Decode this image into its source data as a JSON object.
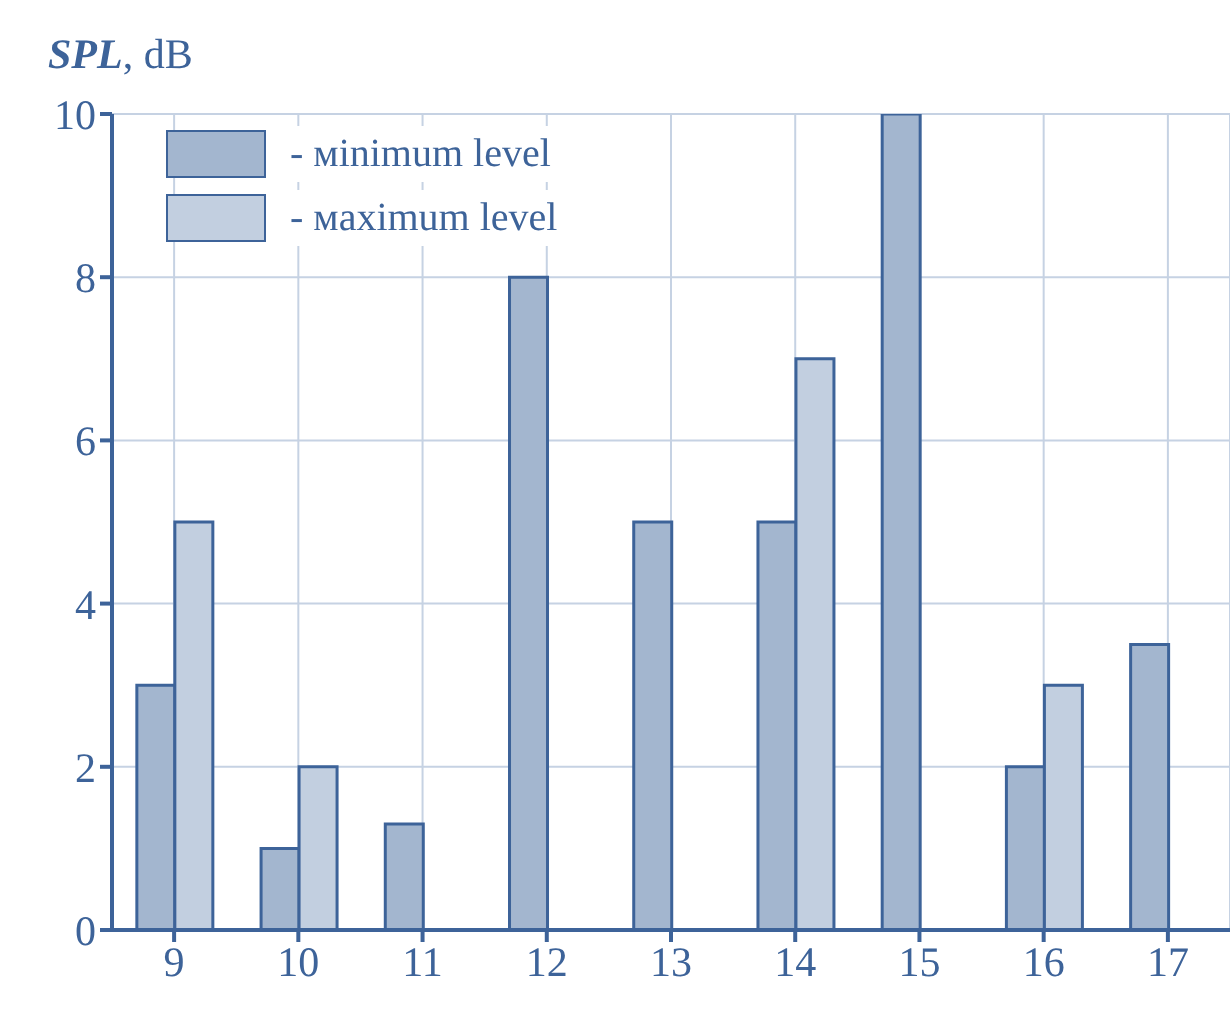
{
  "chart_data": {
    "type": "bar",
    "ylabel": "SPL, dB",
    "categories": [
      "9",
      "10",
      "11",
      "12",
      "13",
      "14",
      "15",
      "16",
      "17"
    ],
    "series": [
      {
        "name": "- мinimum level",
        "color": "#a3b6cf",
        "values": [
          3,
          1,
          1.3,
          8,
          5,
          5,
          10,
          2,
          3.5
        ]
      },
      {
        "name": "- мaximum level",
        "color": "#c2cfe0",
        "values": [
          5,
          2,
          null,
          null,
          null,
          7,
          null,
          3,
          null
        ]
      }
    ],
    "ylim": [
      0,
      10
    ],
    "yticks": [
      0,
      2,
      4,
      6,
      8,
      10
    ],
    "grid": true,
    "legend": "top left"
  }
}
